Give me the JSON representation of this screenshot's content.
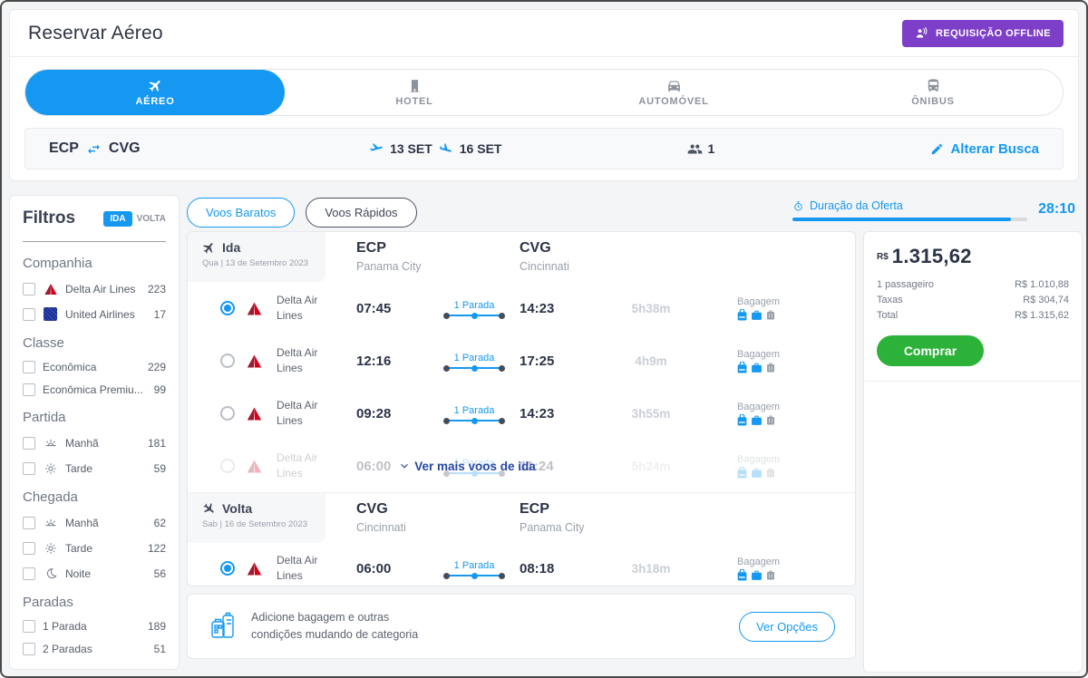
{
  "colors": {
    "accent": "#1598F2",
    "purple": "#7D3FC8",
    "green": "#2CB238",
    "delta_red": "#D6001C",
    "united_blue": "#1D2F90"
  },
  "header": {
    "title": "Reservar Aéreo",
    "offline_button_label": "REQUISIÇÃO OFFLINE",
    "tabs": [
      {
        "label": "AÉREO",
        "active": true
      },
      {
        "label": "HOTEL",
        "active": false
      },
      {
        "label": "AUTOMÓVEL",
        "active": false
      },
      {
        "label": "ÔNIBUS",
        "active": false
      }
    ],
    "search_summary": {
      "origin": "ECP",
      "destination": "CVG",
      "depart_date": "13 SET",
      "return_date": "16 SET",
      "passengers": "1",
      "alter_label": "Alterar Busca"
    }
  },
  "filters": {
    "title": "Filtros",
    "direction_toggle": {
      "ida": "IDA",
      "volta": "VOLTA"
    },
    "sections": [
      {
        "title": "Companhia",
        "items": [
          {
            "label": "Delta Air Lines",
            "count": "223"
          },
          {
            "label": "United Airlines",
            "count": "17"
          }
        ]
      },
      {
        "title": "Classe",
        "items": [
          {
            "label": "Econômica",
            "count": "229"
          },
          {
            "label": "Econômica Premiu...",
            "count": "99"
          }
        ]
      },
      {
        "title": "Partida",
        "items": [
          {
            "label": "Manhã",
            "count": "181"
          },
          {
            "label": "Tarde",
            "count": "59"
          }
        ]
      },
      {
        "title": "Chegada",
        "items": [
          {
            "label": "Manhã",
            "count": "62"
          },
          {
            "label": "Tarde",
            "count": "122"
          },
          {
            "label": "Noite",
            "count": "56"
          }
        ]
      },
      {
        "title": "Paradas",
        "items": [
          {
            "label": "1 Parada",
            "count": "189"
          },
          {
            "label": "2 Paradas",
            "count": "51"
          }
        ]
      }
    ]
  },
  "results": {
    "sort_pills": [
      {
        "label": "Voos Baratos"
      },
      {
        "label": "Voos Rápidos"
      }
    ],
    "offer": {
      "label": "Duração da Oferta",
      "time_left": "28:10",
      "progress_pct": 93
    },
    "baggage_label": "Bagagem",
    "outbound": {
      "label": "Ida",
      "date": "Qua | 13 de Setembro 2023",
      "origin_code": "ECP",
      "origin_city": "Panama City",
      "dest_code": "CVG",
      "dest_city": "Cincinnati",
      "more_link": "Ver mais voos de ida",
      "flights": [
        {
          "airline": "Delta Air Lines",
          "departure": "07:45",
          "stops": "1 Parada",
          "arrival": "14:23",
          "duration": "5h38m",
          "selected": true
        },
        {
          "airline": "Delta Air Lines",
          "departure": "12:16",
          "stops": "1 Parada",
          "arrival": "17:25",
          "duration": "4h9m",
          "selected": false
        },
        {
          "airline": "Delta Air Lines",
          "departure": "09:28",
          "stops": "1 Parada",
          "arrival": "14:23",
          "duration": "3h55m",
          "selected": false
        },
        {
          "airline": "Delta Air Lines",
          "departure": "06:00",
          "stops": "1 Parada",
          "arrival": "11:24",
          "duration": "5h24m",
          "selected": false
        }
      ]
    },
    "inbound": {
      "label": "Volta",
      "date": "Sab | 16 de Setembro 2023",
      "origin_code": "CVG",
      "origin_city": "Cincinnati",
      "dest_code": "ECP",
      "dest_city": "Panama City",
      "flights": [
        {
          "airline": "Delta Air Lines",
          "departure": "06:00",
          "stops": "1 Parada",
          "arrival": "08:18",
          "duration": "3h18m",
          "selected": true
        }
      ]
    },
    "category_footer": {
      "line1": "Adicione bagagem e outras",
      "line2": "condições mudando de categoria",
      "button_label": "Ver Opções"
    }
  },
  "summary": {
    "currency": "R$",
    "total": "1.315,62",
    "rows": [
      {
        "label": "1 passageiro",
        "value": "R$ 1.010,88"
      },
      {
        "label": "Taxas",
        "value": "R$ 304,74"
      },
      {
        "label": "Total",
        "value": "R$ 1.315,62"
      }
    ],
    "buy_button_label": "Comprar"
  }
}
